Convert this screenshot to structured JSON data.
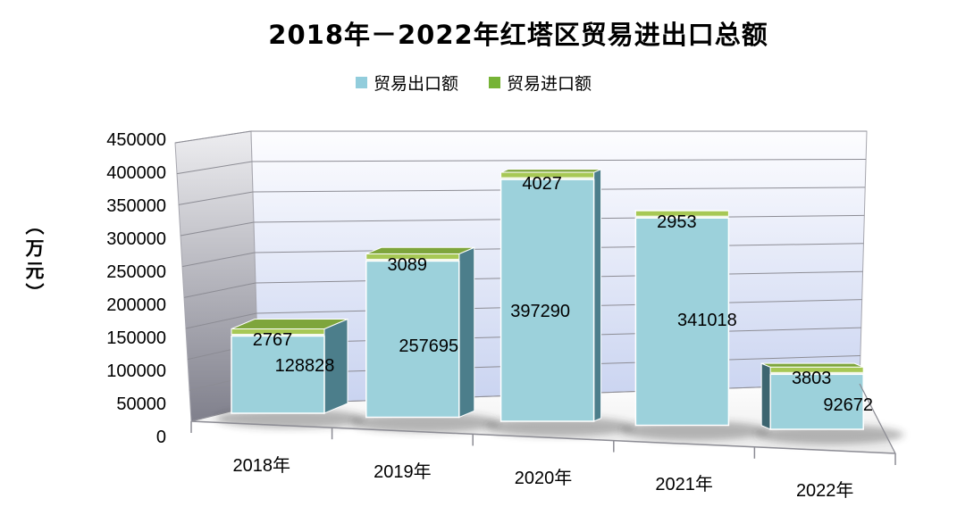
{
  "title": "2018年－2022年红塔区贸易进出口总额",
  "legend": {
    "items": [
      {
        "label": "贸易出口额",
        "color": "#92CDDC"
      },
      {
        "label": "贸易进口额",
        "color": "#76B336"
      }
    ]
  },
  "y_axis": {
    "title": "（万元）"
  },
  "chart_data": {
    "type": "bar",
    "subtype": "3d-stacked-column",
    "title": "2018年－2022年红塔区贸易进出口总额",
    "categories": [
      "2018年",
      "2019年",
      "2020年",
      "2021年",
      "2022年"
    ],
    "series": [
      {
        "name": "贸易出口额",
        "color": "#9CD1DB",
        "values": [
          128828,
          257695,
          397290,
          341018,
          92672
        ]
      },
      {
        "name": "贸易进口额",
        "color": "#7EB43C",
        "values": [
          2767,
          3089,
          4027,
          2953,
          3803
        ]
      }
    ],
    "xlabel": "",
    "ylabel": "（万元）",
    "ylim": [
      0,
      450000
    ],
    "ytick_step": 50000,
    "yticks": [
      450000,
      400000,
      350000,
      300000,
      250000,
      200000,
      150000,
      100000,
      50000,
      0
    ],
    "legend_position": "top",
    "grid": true,
    "data_labels": true
  }
}
